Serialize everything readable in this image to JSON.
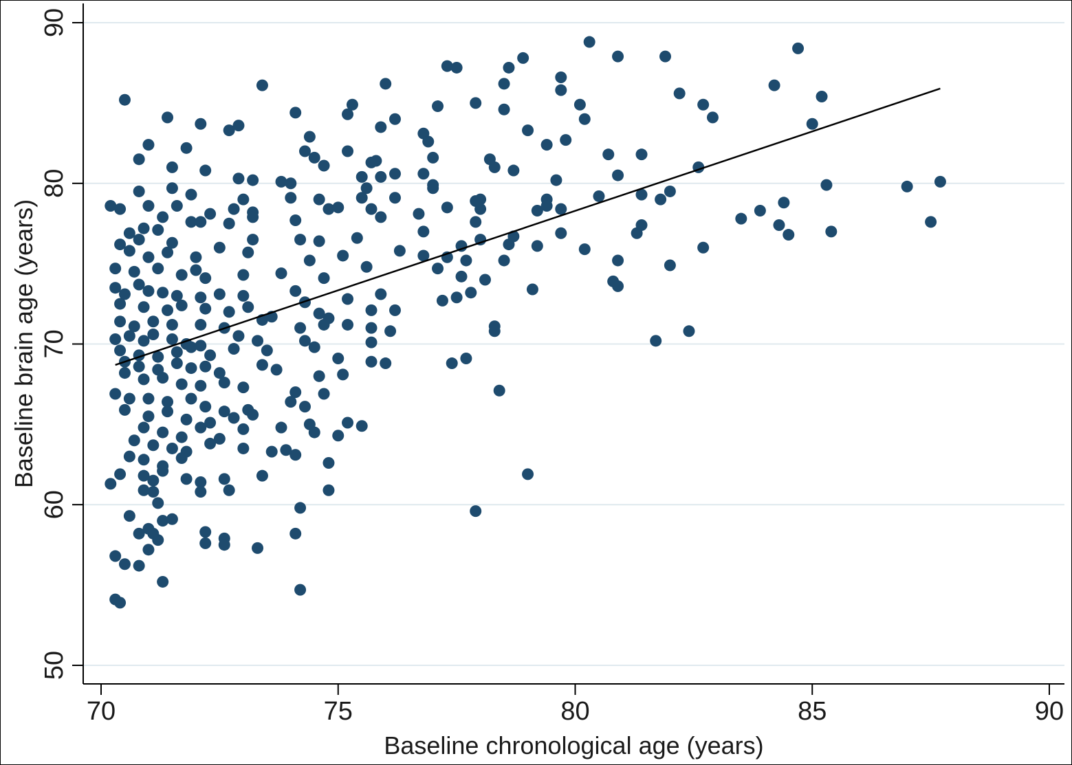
{
  "chart_data": {
    "type": "scatter",
    "xlabel": "Baseline chronological age (years)",
    "ylabel": "Baseline brain age (years)",
    "xlim": [
      70,
      90
    ],
    "ylim": [
      50,
      90
    ],
    "x_ticks": [
      70,
      75,
      80,
      85,
      90
    ],
    "y_ticks": [
      50,
      60,
      70,
      80,
      90
    ],
    "grid": "horizontal",
    "colors": {
      "points": "#1e4b6e",
      "fit_line": "#000000",
      "grid": "#dfe9ee"
    },
    "fit_line": {
      "x": [
        70.3,
        87.7
      ],
      "y": [
        68.7,
        85.9
      ]
    },
    "points": [
      [
        80.3,
        88.8
      ],
      [
        84.7,
        88.4
      ],
      [
        80.9,
        87.9
      ],
      [
        81.9,
        87.9
      ],
      [
        77.3,
        87.3
      ],
      [
        77.5,
        87.2
      ],
      [
        78.9,
        87.8
      ],
      [
        78.6,
        87.2
      ],
      [
        79.7,
        86.6
      ],
      [
        73.4,
        86.1
      ],
      [
        76.0,
        86.2
      ],
      [
        79.7,
        85.8
      ],
      [
        84.2,
        86.1
      ],
      [
        78.5,
        86.2
      ],
      [
        82.2,
        85.6
      ],
      [
        85.2,
        85.4
      ],
      [
        70.5,
        85.2
      ],
      [
        75.3,
        84.9
      ],
      [
        77.1,
        84.8
      ],
      [
        77.9,
        85.0
      ],
      [
        80.1,
        84.9
      ],
      [
        82.7,
        84.9
      ],
      [
        78.5,
        84.6
      ],
      [
        74.1,
        84.4
      ],
      [
        75.2,
        84.3
      ],
      [
        76.2,
        84.0
      ],
      [
        80.2,
        84.0
      ],
      [
        82.9,
        84.1
      ],
      [
        71.4,
        84.1
      ],
      [
        72.1,
        83.7
      ],
      [
        72.9,
        83.6
      ],
      [
        72.7,
        83.3
      ],
      [
        75.9,
        83.5
      ],
      [
        85.0,
        83.7
      ],
      [
        76.8,
        83.1
      ],
      [
        79.0,
        83.3
      ],
      [
        74.4,
        82.9
      ],
      [
        76.9,
        82.6
      ],
      [
        79.4,
        82.4
      ],
      [
        79.8,
        82.7
      ],
      [
        71.0,
        82.4
      ],
      [
        71.8,
        82.2
      ],
      [
        74.3,
        82.0
      ],
      [
        75.2,
        82.0
      ],
      [
        80.7,
        81.8
      ],
      [
        81.4,
        81.8
      ],
      [
        70.8,
        81.5
      ],
      [
        74.5,
        81.6
      ],
      [
        75.7,
        81.3
      ],
      [
        75.8,
        81.4
      ],
      [
        77.0,
        81.6
      ],
      [
        78.2,
        81.5
      ],
      [
        71.5,
        81.0
      ],
      [
        74.7,
        81.1
      ],
      [
        78.3,
        81.0
      ],
      [
        78.7,
        80.8
      ],
      [
        72.2,
        80.8
      ],
      [
        76.2,
        80.6
      ],
      [
        76.8,
        80.6
      ],
      [
        80.9,
        80.5
      ],
      [
        72.9,
        80.3
      ],
      [
        73.2,
        80.2
      ],
      [
        75.5,
        80.4
      ],
      [
        75.9,
        80.4
      ],
      [
        77.0,
        79.7
      ],
      [
        79.6,
        80.2
      ],
      [
        82.6,
        81.0
      ],
      [
        73.8,
        80.1
      ],
      [
        74.0,
        80.0
      ],
      [
        85.3,
        79.9
      ],
      [
        87.0,
        79.8
      ],
      [
        87.7,
        80.1
      ],
      [
        71.5,
        79.7
      ],
      [
        71.9,
        79.3
      ],
      [
        75.6,
        79.7
      ],
      [
        77.0,
        79.9
      ],
      [
        80.5,
        79.2
      ],
      [
        81.4,
        79.3
      ],
      [
        81.8,
        79.0
      ],
      [
        82.0,
        79.5
      ],
      [
        70.8,
        79.5
      ],
      [
        74.0,
        79.1
      ],
      [
        75.5,
        79.1
      ],
      [
        76.2,
        79.1
      ],
      [
        77.9,
        78.9
      ],
      [
        78.0,
        79.0
      ],
      [
        79.4,
        79.0
      ],
      [
        84.4,
        78.8
      ],
      [
        73.0,
        79.0
      ],
      [
        74.6,
        79.0
      ],
      [
        70.2,
        78.6
      ],
      [
        70.4,
        78.4
      ],
      [
        71.0,
        78.6
      ],
      [
        71.6,
        78.6
      ],
      [
        72.8,
        78.4
      ],
      [
        73.2,
        78.2
      ],
      [
        74.8,
        78.4
      ],
      [
        75.0,
        78.5
      ],
      [
        75.7,
        78.4
      ],
      [
        76.7,
        78.1
      ],
      [
        77.3,
        78.5
      ],
      [
        78.0,
        78.4
      ],
      [
        79.2,
        78.3
      ],
      [
        79.7,
        78.4
      ],
      [
        83.9,
        78.3
      ],
      [
        71.3,
        77.9
      ],
      [
        71.9,
        77.6
      ],
      [
        72.3,
        78.1
      ],
      [
        73.2,
        77.9
      ],
      [
        74.1,
        77.7
      ],
      [
        75.9,
        77.9
      ],
      [
        77.9,
        77.6
      ],
      [
        79.4,
        78.6
      ],
      [
        83.5,
        77.8
      ],
      [
        87.5,
        77.6
      ],
      [
        70.9,
        77.2
      ],
      [
        71.2,
        77.1
      ],
      [
        72.1,
        77.6
      ],
      [
        72.7,
        77.5
      ],
      [
        76.8,
        77.0
      ],
      [
        78.7,
        76.7
      ],
      [
        79.7,
        76.9
      ],
      [
        81.3,
        76.9
      ],
      [
        81.4,
        77.4
      ],
      [
        84.3,
        77.4
      ],
      [
        85.4,
        77.0
      ],
      [
        70.6,
        76.9
      ],
      [
        70.8,
        76.5
      ],
      [
        71.5,
        76.3
      ],
      [
        72.5,
        76.0
      ],
      [
        73.2,
        76.5
      ],
      [
        74.2,
        76.5
      ],
      [
        74.6,
        76.4
      ],
      [
        75.4,
        76.6
      ],
      [
        77.6,
        76.1
      ],
      [
        78.0,
        76.5
      ],
      [
        78.6,
        76.2
      ],
      [
        79.2,
        76.1
      ],
      [
        80.2,
        75.9
      ],
      [
        82.7,
        76.0
      ],
      [
        84.5,
        76.8
      ],
      [
        70.4,
        76.2
      ],
      [
        70.6,
        75.8
      ],
      [
        71.0,
        75.4
      ],
      [
        71.4,
        75.7
      ],
      [
        72.0,
        75.4
      ],
      [
        73.1,
        75.7
      ],
      [
        74.4,
        75.2
      ],
      [
        75.1,
        75.5
      ],
      [
        76.3,
        75.8
      ],
      [
        76.8,
        75.5
      ],
      [
        77.3,
        75.4
      ],
      [
        77.7,
        75.2
      ],
      [
        78.5,
        75.2
      ],
      [
        80.9,
        75.2
      ],
      [
        82.0,
        74.9
      ],
      [
        70.3,
        74.7
      ],
      [
        70.7,
        74.5
      ],
      [
        71.2,
        74.7
      ],
      [
        71.7,
        74.3
      ],
      [
        72.0,
        74.6
      ],
      [
        72.2,
        74.1
      ],
      [
        73.0,
        74.3
      ],
      [
        73.8,
        74.4
      ],
      [
        74.7,
        74.1
      ],
      [
        75.6,
        74.8
      ],
      [
        77.1,
        74.7
      ],
      [
        77.6,
        74.2
      ],
      [
        78.1,
        74.0
      ],
      [
        80.8,
        73.9
      ],
      [
        70.3,
        73.5
      ],
      [
        70.5,
        73.1
      ],
      [
        70.8,
        73.7
      ],
      [
        71.0,
        73.3
      ],
      [
        71.3,
        73.2
      ],
      [
        71.6,
        73.0
      ],
      [
        72.1,
        72.9
      ],
      [
        72.5,
        73.1
      ],
      [
        73.0,
        73.0
      ],
      [
        74.1,
        73.3
      ],
      [
        74.3,
        72.6
      ],
      [
        75.2,
        72.8
      ],
      [
        75.9,
        73.1
      ],
      [
        77.5,
        72.9
      ],
      [
        77.8,
        73.2
      ],
      [
        79.1,
        73.4
      ],
      [
        80.9,
        73.6
      ],
      [
        70.4,
        72.5
      ],
      [
        70.9,
        72.3
      ],
      [
        71.4,
        72.1
      ],
      [
        71.7,
        72.4
      ],
      [
        72.2,
        72.2
      ],
      [
        72.7,
        72.0
      ],
      [
        73.1,
        72.3
      ],
      [
        73.6,
        71.7
      ],
      [
        74.6,
        71.9
      ],
      [
        75.7,
        72.1
      ],
      [
        76.2,
        72.1
      ],
      [
        77.2,
        72.7
      ],
      [
        70.4,
        71.4
      ],
      [
        70.7,
        71.1
      ],
      [
        71.1,
        71.4
      ],
      [
        71.5,
        71.2
      ],
      [
        72.1,
        71.2
      ],
      [
        72.6,
        71.0
      ],
      [
        73.4,
        71.5
      ],
      [
        74.2,
        71.0
      ],
      [
        74.8,
        71.6
      ],
      [
        75.2,
        71.2
      ],
      [
        75.7,
        71.0
      ],
      [
        76.1,
        70.8
      ],
      [
        78.3,
        71.1
      ],
      [
        82.4,
        70.8
      ],
      [
        70.3,
        70.3
      ],
      [
        70.6,
        70.5
      ],
      [
        70.9,
        70.2
      ],
      [
        71.1,
        70.6
      ],
      [
        71.5,
        70.3
      ],
      [
        71.8,
        70.0
      ],
      [
        72.1,
        69.9
      ],
      [
        72.9,
        70.5
      ],
      [
        73.3,
        70.2
      ],
      [
        74.3,
        70.2
      ],
      [
        74.7,
        71.2
      ],
      [
        75.7,
        70.1
      ],
      [
        78.3,
        70.8
      ],
      [
        81.7,
        70.2
      ],
      [
        70.4,
        69.6
      ],
      [
        70.8,
        69.3
      ],
      [
        71.2,
        69.2
      ],
      [
        71.6,
        69.5
      ],
      [
        71.9,
        69.8
      ],
      [
        72.3,
        69.3
      ],
      [
        72.8,
        69.7
      ],
      [
        73.5,
        69.6
      ],
      [
        74.5,
        69.8
      ],
      [
        75.0,
        69.1
      ],
      [
        76.0,
        68.8
      ],
      [
        70.5,
        68.9
      ],
      [
        70.8,
        68.6
      ],
      [
        71.2,
        68.4
      ],
      [
        71.6,
        68.8
      ],
      [
        71.9,
        68.5
      ],
      [
        72.2,
        68.6
      ],
      [
        72.5,
        68.2
      ],
      [
        73.4,
        68.7
      ],
      [
        73.7,
        68.4
      ],
      [
        74.6,
        68.0
      ],
      [
        75.1,
        68.1
      ],
      [
        75.7,
        68.9
      ],
      [
        77.4,
        68.8
      ],
      [
        77.7,
        69.1
      ],
      [
        70.5,
        68.2
      ],
      [
        70.9,
        67.8
      ],
      [
        71.3,
        67.9
      ],
      [
        71.7,
        67.5
      ],
      [
        72.1,
        67.4
      ],
      [
        72.6,
        67.6
      ],
      [
        73.0,
        67.3
      ],
      [
        74.1,
        67.0
      ],
      [
        74.7,
        66.9
      ],
      [
        78.4,
        67.1
      ],
      [
        70.3,
        66.9
      ],
      [
        70.6,
        66.6
      ],
      [
        71.0,
        66.6
      ],
      [
        71.4,
        66.4
      ],
      [
        71.9,
        66.6
      ],
      [
        72.2,
        66.1
      ],
      [
        72.6,
        65.8
      ],
      [
        73.1,
        65.9
      ],
      [
        74.0,
        66.4
      ],
      [
        74.3,
        66.1
      ],
      [
        70.5,
        65.9
      ],
      [
        71.0,
        65.5
      ],
      [
        71.4,
        65.8
      ],
      [
        71.8,
        65.3
      ],
      [
        72.3,
        65.1
      ],
      [
        72.8,
        65.4
      ],
      [
        73.2,
        65.6
      ],
      [
        74.4,
        65.0
      ],
      [
        75.2,
        65.1
      ],
      [
        75.5,
        64.9
      ],
      [
        70.9,
        64.8
      ],
      [
        71.3,
        64.5
      ],
      [
        71.7,
        64.2
      ],
      [
        72.1,
        64.8
      ],
      [
        72.5,
        64.1
      ],
      [
        73.0,
        64.7
      ],
      [
        73.8,
        64.8
      ],
      [
        74.5,
        64.5
      ],
      [
        75.0,
        64.3
      ],
      [
        70.7,
        64.0
      ],
      [
        71.1,
        63.7
      ],
      [
        71.5,
        63.5
      ],
      [
        71.8,
        63.3
      ],
      [
        72.3,
        63.8
      ],
      [
        73.0,
        63.5
      ],
      [
        73.6,
        63.3
      ],
      [
        73.9,
        63.4
      ],
      [
        74.1,
        63.1
      ],
      [
        70.6,
        63.0
      ],
      [
        70.9,
        62.8
      ],
      [
        71.3,
        62.4
      ],
      [
        71.7,
        62.9
      ],
      [
        74.8,
        62.6
      ],
      [
        70.9,
        61.8
      ],
      [
        71.1,
        61.5
      ],
      [
        71.3,
        62.1
      ],
      [
        71.8,
        61.6
      ],
      [
        72.1,
        61.4
      ],
      [
        72.6,
        61.6
      ],
      [
        73.4,
        61.8
      ],
      [
        79.0,
        61.9
      ],
      [
        70.2,
        61.3
      ],
      [
        70.4,
        61.9
      ],
      [
        70.9,
        60.9
      ],
      [
        71.1,
        60.8
      ],
      [
        72.1,
        60.8
      ],
      [
        72.7,
        60.9
      ],
      [
        74.8,
        60.9
      ],
      [
        71.2,
        60.1
      ],
      [
        71.3,
        59.0
      ],
      [
        71.5,
        59.1
      ],
      [
        70.6,
        59.3
      ],
      [
        74.2,
        59.8
      ],
      [
        77.9,
        59.6
      ],
      [
        70.8,
        58.2
      ],
      [
        71.0,
        58.5
      ],
      [
        71.1,
        58.2
      ],
      [
        71.2,
        57.8
      ],
      [
        72.2,
        58.3
      ],
      [
        72.6,
        57.9
      ],
      [
        74.1,
        58.2
      ],
      [
        71.0,
        57.2
      ],
      [
        72.2,
        57.6
      ],
      [
        72.6,
        57.5
      ],
      [
        73.3,
        57.3
      ],
      [
        70.3,
        56.8
      ],
      [
        70.5,
        56.3
      ],
      [
        70.8,
        56.2
      ],
      [
        71.3,
        55.2
      ],
      [
        74.2,
        54.7
      ],
      [
        70.3,
        54.1
      ],
      [
        70.4,
        53.9
      ]
    ]
  }
}
